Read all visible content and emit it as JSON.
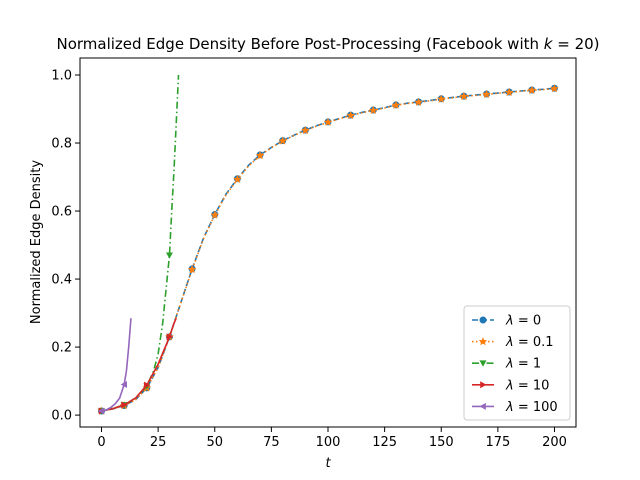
{
  "chart_data": {
    "type": "line",
    "title": "Normalized Edge Density Before Post-Processing (Facebook with k = 20)",
    "xlabel": "t",
    "ylabel": "Normalized Edge Density",
    "xlim": [
      -9.5,
      209.5
    ],
    "ylim": [
      -0.035,
      1.05
    ],
    "xticks": [
      0,
      25,
      50,
      75,
      100,
      125,
      150,
      175,
      200
    ],
    "yticks": [
      0.0,
      0.2,
      0.4,
      0.6,
      0.8,
      1.0
    ],
    "ytick_labels": [
      "0.0",
      "0.2",
      "0.4",
      "0.6",
      "0.8",
      "1.0"
    ],
    "grid": false,
    "legend_position": "lower-right",
    "series": [
      {
        "name": "λ = 0",
        "color": "#1f77b4",
        "linestyle": "dashed",
        "marker": "circle",
        "points": [
          [
            0,
            0.012
          ],
          [
            5,
            0.018
          ],
          [
            10,
            0.028
          ],
          [
            15,
            0.045
          ],
          [
            20,
            0.08
          ],
          [
            25,
            0.14
          ],
          [
            30,
            0.23
          ],
          [
            35,
            0.33
          ],
          [
            40,
            0.43
          ],
          [
            45,
            0.52
          ],
          [
            50,
            0.59
          ],
          [
            55,
            0.65
          ],
          [
            60,
            0.695
          ],
          [
            65,
            0.735
          ],
          [
            70,
            0.765
          ],
          [
            75,
            0.787
          ],
          [
            80,
            0.807
          ],
          [
            85,
            0.823
          ],
          [
            90,
            0.838
          ],
          [
            95,
            0.851
          ],
          [
            100,
            0.862
          ],
          [
            105,
            0.872
          ],
          [
            110,
            0.882
          ],
          [
            115,
            0.89
          ],
          [
            120,
            0.897
          ],
          [
            125,
            0.904
          ],
          [
            130,
            0.912
          ],
          [
            135,
            0.917
          ],
          [
            140,
            0.921
          ],
          [
            145,
            0.925
          ],
          [
            150,
            0.93
          ],
          [
            155,
            0.934
          ],
          [
            160,
            0.938
          ],
          [
            165,
            0.941
          ],
          [
            170,
            0.944
          ],
          [
            175,
            0.947
          ],
          [
            180,
            0.95
          ],
          [
            185,
            0.953
          ],
          [
            190,
            0.956
          ],
          [
            195,
            0.958
          ],
          [
            200,
            0.961
          ]
        ],
        "marker_x": [
          0,
          10,
          20,
          30,
          40,
          50,
          60,
          70,
          80,
          90,
          100,
          110,
          120,
          130,
          140,
          150,
          160,
          170,
          180,
          190,
          200
        ]
      },
      {
        "name": "λ = 0.1",
        "color": "#ff7f0e",
        "linestyle": "dotted",
        "marker": "star",
        "points": [
          [
            0,
            0.012
          ],
          [
            5,
            0.018
          ],
          [
            10,
            0.028
          ],
          [
            15,
            0.045
          ],
          [
            20,
            0.08
          ],
          [
            25,
            0.14
          ],
          [
            30,
            0.23
          ],
          [
            35,
            0.33
          ],
          [
            40,
            0.428
          ],
          [
            45,
            0.518
          ],
          [
            50,
            0.588
          ],
          [
            55,
            0.648
          ],
          [
            60,
            0.693
          ],
          [
            65,
            0.733
          ],
          [
            70,
            0.763
          ],
          [
            75,
            0.786
          ],
          [
            80,
            0.806
          ],
          [
            85,
            0.822
          ],
          [
            90,
            0.837
          ],
          [
            95,
            0.85
          ],
          [
            100,
            0.861
          ],
          [
            105,
            0.871
          ],
          [
            110,
            0.881
          ],
          [
            115,
            0.889
          ],
          [
            120,
            0.896
          ],
          [
            125,
            0.903
          ],
          [
            130,
            0.911
          ],
          [
            135,
            0.916
          ],
          [
            140,
            0.92
          ],
          [
            145,
            0.924
          ],
          [
            150,
            0.929
          ],
          [
            155,
            0.933
          ],
          [
            160,
            0.937
          ],
          [
            165,
            0.94
          ],
          [
            170,
            0.943
          ],
          [
            175,
            0.946
          ],
          [
            180,
            0.949
          ],
          [
            185,
            0.952
          ],
          [
            190,
            0.955
          ],
          [
            195,
            0.957
          ],
          [
            200,
            0.96
          ]
        ],
        "marker_x": [
          0,
          10,
          20,
          30,
          40,
          50,
          60,
          70,
          80,
          90,
          100,
          110,
          120,
          130,
          140,
          150,
          160,
          170,
          180,
          190,
          200
        ]
      },
      {
        "name": "λ = 1",
        "color": "#2ca02c",
        "linestyle": "dashdot",
        "marker": "triangle-down",
        "points": [
          [
            0,
            0.012
          ],
          [
            5,
            0.02
          ],
          [
            10,
            0.03
          ],
          [
            15,
            0.05
          ],
          [
            20,
            0.085
          ],
          [
            23,
            0.13
          ],
          [
            25,
            0.18
          ],
          [
            27,
            0.27
          ],
          [
            30,
            0.47
          ],
          [
            31,
            0.6
          ],
          [
            32,
            0.72
          ],
          [
            33,
            0.86
          ],
          [
            34,
            1.0
          ]
        ],
        "marker_x": [
          0,
          10,
          20,
          30
        ]
      },
      {
        "name": "λ = 10",
        "color": "#d62728",
        "linestyle": "solid",
        "marker": "triangle-right",
        "points": [
          [
            0,
            0.012
          ],
          [
            5,
            0.019
          ],
          [
            10,
            0.03
          ],
          [
            15,
            0.05
          ],
          [
            20,
            0.088
          ],
          [
            25,
            0.15
          ],
          [
            30,
            0.23
          ],
          [
            32,
            0.27
          ],
          [
            33,
            0.285
          ]
        ],
        "marker_x": [
          0,
          10,
          20,
          30
        ]
      },
      {
        "name": "λ = 100",
        "color": "#9467bd",
        "linestyle": "solid",
        "marker": "triangle-left",
        "points": [
          [
            0,
            0.012
          ],
          [
            2,
            0.015
          ],
          [
            4,
            0.022
          ],
          [
            6,
            0.033
          ],
          [
            8,
            0.05
          ],
          [
            10,
            0.09
          ],
          [
            11,
            0.13
          ],
          [
            12,
            0.2
          ],
          [
            13,
            0.285
          ]
        ],
        "marker_x": [
          0,
          10
        ]
      }
    ]
  }
}
